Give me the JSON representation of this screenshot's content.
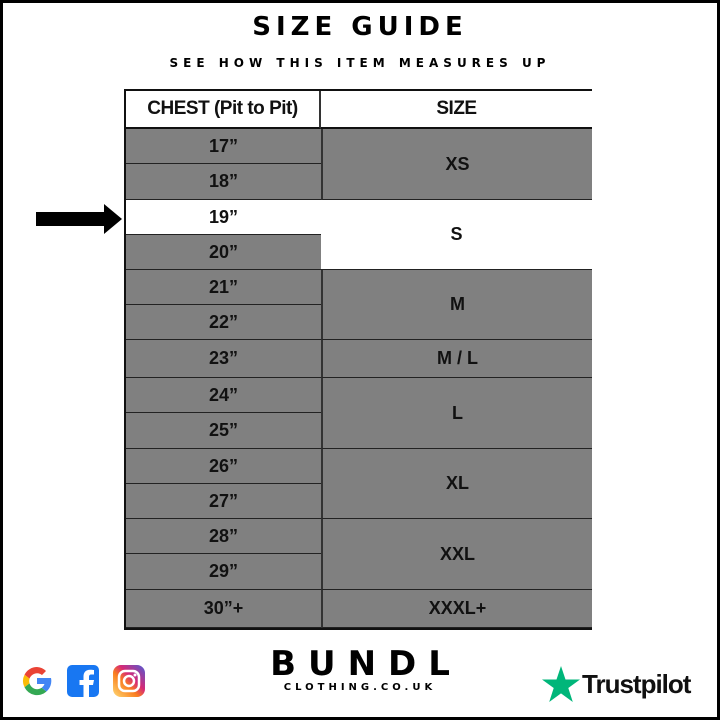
{
  "header": {
    "title": "SIZE GUIDE",
    "subtitle": "SEE HOW THIS ITEM MEASURES UP"
  },
  "table": {
    "columns": [
      "CHEST (Pit to Pit)",
      "SIZE"
    ],
    "chest_rows": [
      "17”",
      "18”",
      "19”",
      "20”",
      "21”",
      "22”",
      "23”",
      "24”",
      "25”",
      "26”",
      "27”",
      "28”",
      "29”",
      "30”+"
    ],
    "sizes": [
      "XS",
      "S",
      "M",
      "M / L",
      "L",
      "XL",
      "XXL",
      "XXXL+"
    ],
    "highlighted_chest": "19”",
    "highlighted_size": "S"
  },
  "footer": {
    "brand_name": "BUNDL",
    "brand_sub": "CLOTHING.CO.UK",
    "social_icons": [
      "google-icon",
      "facebook-icon",
      "instagram-icon"
    ],
    "trustpilot": "Trustpilot"
  },
  "colors": {
    "row_gray": "#808080",
    "highlight": "#ffffff",
    "trustpilot_green": "#00b67a",
    "facebook_blue": "#1877f2"
  }
}
